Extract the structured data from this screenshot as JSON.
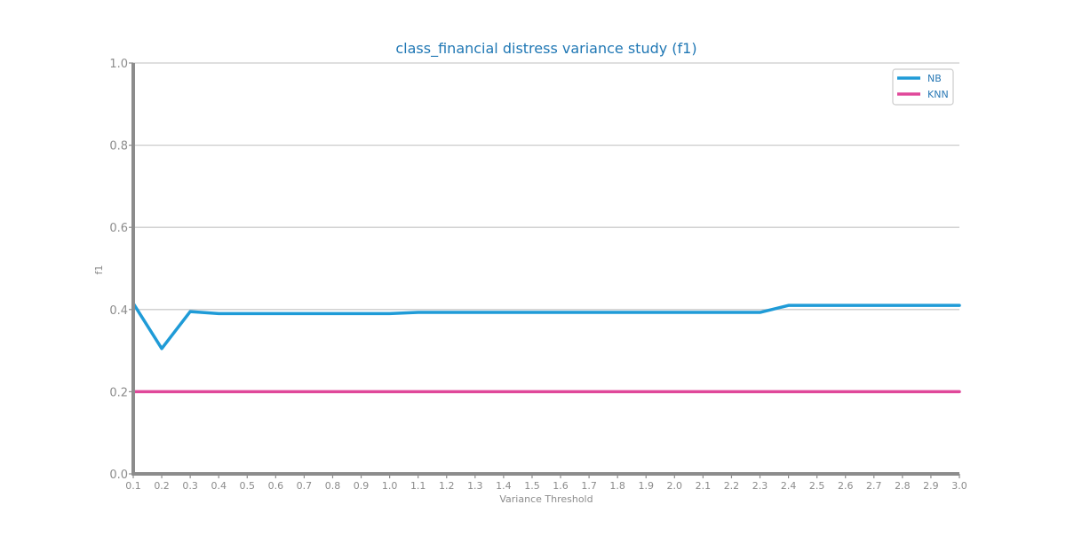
{
  "chart_data": {
    "type": "line",
    "title": "class_financial distress variance study (f1)",
    "xlabel": "Variance Threshold",
    "ylabel": "f1",
    "x": [
      0.1,
      0.2,
      0.3,
      0.4,
      0.5,
      0.6,
      0.7,
      0.8,
      0.9,
      1.0,
      1.1,
      1.2,
      1.3,
      1.4,
      1.5,
      1.6,
      1.7,
      1.8,
      1.9,
      2.0,
      2.1,
      2.2,
      2.3,
      2.4,
      2.5,
      2.6,
      2.7,
      2.8,
      2.9,
      3.0
    ],
    "x_tick_labels": [
      "0.1",
      "0.2",
      "0.3",
      "0.4",
      "0.5",
      "0.6",
      "0.7",
      "0.8",
      "0.9",
      "1.0",
      "1.1",
      "1.2",
      "1.3",
      "1.4",
      "1.5",
      "1.6",
      "1.7",
      "1.8",
      "1.9",
      "2.0",
      "2.1",
      "2.2",
      "2.3",
      "2.4",
      "2.5",
      "2.6",
      "2.7",
      "2.8",
      "2.9",
      "3.0"
    ],
    "xlim": [
      0.1,
      3.0
    ],
    "ylim": [
      0.0,
      1.0
    ],
    "y_ticks": [
      0.0,
      0.2,
      0.4,
      0.6,
      0.8,
      1.0
    ],
    "y_tick_labels": [
      "0.0",
      "0.2",
      "0.4",
      "0.6",
      "0.8",
      "1.0"
    ],
    "grid": "horizontal",
    "legend_position": "top-right",
    "series": [
      {
        "name": "NB",
        "color": "#1f9bd7",
        "values": [
          0.415,
          0.305,
          0.395,
          0.39,
          0.39,
          0.39,
          0.39,
          0.39,
          0.39,
          0.39,
          0.393,
          0.393,
          0.393,
          0.393,
          0.393,
          0.393,
          0.393,
          0.393,
          0.393,
          0.393,
          0.393,
          0.393,
          0.393,
          0.41,
          0.41,
          0.41,
          0.41,
          0.41,
          0.41,
          0.41
        ]
      },
      {
        "name": "KNN",
        "color": "#e0489a",
        "values": [
          0.2,
          0.2,
          0.2,
          0.2,
          0.2,
          0.2,
          0.2,
          0.2,
          0.2,
          0.2,
          0.2,
          0.2,
          0.2,
          0.2,
          0.2,
          0.2,
          0.2,
          0.2,
          0.2,
          0.2,
          0.2,
          0.2,
          0.2,
          0.2,
          0.2,
          0.2,
          0.2,
          0.2,
          0.2,
          0.2
        ]
      }
    ]
  }
}
